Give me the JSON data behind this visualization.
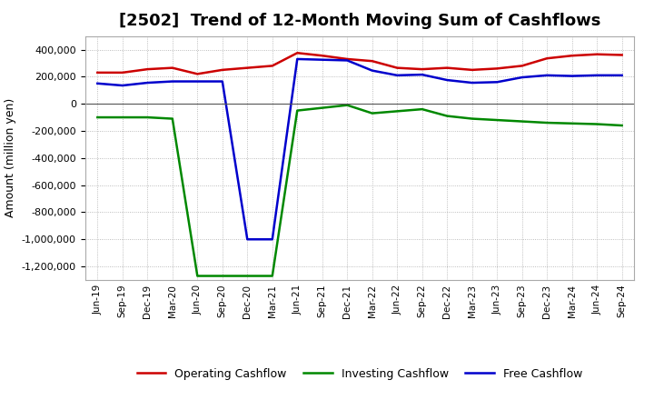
{
  "title": "[2502]  Trend of 12-Month Moving Sum of Cashflows",
  "ylabel": "Amount (million yen)",
  "background_color": "#ffffff",
  "plot_bg_color": "#ffffff",
  "grid_color": "#aaaaaa",
  "ylim": [
    -1300000,
    500000
  ],
  "yticks": [
    -1200000,
    -1000000,
    -800000,
    -600000,
    -400000,
    -200000,
    0,
    200000,
    400000
  ],
  "x_labels": [
    "Jun-19",
    "Sep-19",
    "Dec-19",
    "Mar-20",
    "Jun-20",
    "Sep-20",
    "Dec-20",
    "Mar-21",
    "Jun-21",
    "Sep-21",
    "Dec-21",
    "Mar-22",
    "Jun-22",
    "Sep-22",
    "Dec-22",
    "Mar-23",
    "Jun-23",
    "Sep-23",
    "Dec-23",
    "Mar-24",
    "Jun-24",
    "Sep-24"
  ],
  "operating_cashflow": [
    230000,
    230000,
    255000,
    265000,
    220000,
    250000,
    265000,
    280000,
    375000,
    355000,
    330000,
    315000,
    265000,
    255000,
    265000,
    250000,
    260000,
    280000,
    335000,
    355000,
    365000,
    360000
  ],
  "investing_cashflow": [
    -100000,
    -100000,
    -100000,
    -110000,
    -1270000,
    -1270000,
    -1270000,
    -1270000,
    -50000,
    -30000,
    -10000,
    -70000,
    -55000,
    -40000,
    -90000,
    -110000,
    -120000,
    -130000,
    -140000,
    -145000,
    -150000,
    -160000
  ],
  "free_cashflow": [
    150000,
    135000,
    155000,
    165000,
    165000,
    165000,
    -1000000,
    -1000000,
    330000,
    325000,
    320000,
    245000,
    210000,
    215000,
    175000,
    155000,
    160000,
    195000,
    210000,
    205000,
    210000,
    210000
  ],
  "operating_color": "#cc0000",
  "investing_color": "#008800",
  "free_color": "#0000cc",
  "legend_labels": [
    "Operating Cashflow",
    "Investing Cashflow",
    "Free Cashflow"
  ]
}
